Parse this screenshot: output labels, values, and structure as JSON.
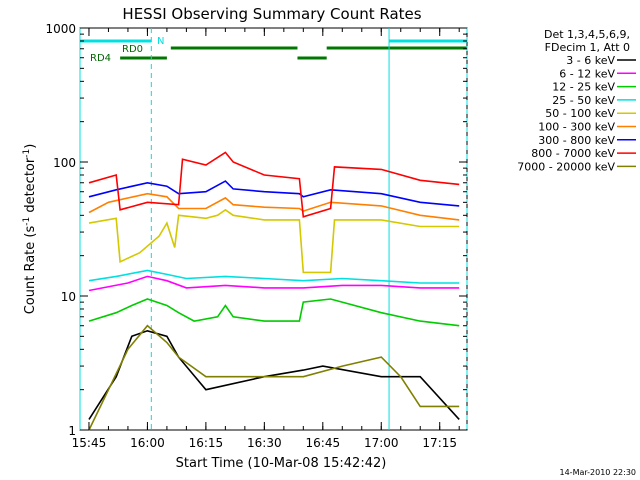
{
  "chart_data": {
    "type": "line",
    "title": "HESSI Observing Summary Count Rates",
    "xlabel": "Start Time (10-Mar-08 15:42:42)",
    "ylabel_main": "Count Rate (s",
    "ylabel_sup1": "-1",
    "ylabel_mid": " detector",
    "ylabel_sup2": "-1",
    "ylabel_end": ")",
    "y_scale": "log",
    "ylim": [
      1,
      1000
    ],
    "x_range_minutes": [
      "15:42:42",
      "17:22:00"
    ],
    "x_ticks": [
      "15:45",
      "16:00",
      "16:15",
      "16:30",
      "16:45",
      "17:00",
      "17:15"
    ],
    "y_ticks": [
      "1",
      "10",
      "100",
      "1000"
    ],
    "legend_header": [
      "Det 1,3,4,5,6,9,",
      "FDecim 1, Att 0"
    ],
    "timestamp": "14-Mar-2010 22:30",
    "bar_labels": {
      "N": "N",
      "RD0": "RD0",
      "RD4": "RD4"
    },
    "time_markers": [
      "15:42:42",
      "16:01:00",
      "17:02:00",
      "17:22:00"
    ],
    "series": [
      {
        "name": "3 - 6 keV",
        "color": "#000000",
        "values": [
          [
            "15:45",
            1.2
          ],
          [
            "15:52",
            2.5
          ],
          [
            "15:56",
            5.0
          ],
          [
            "16:00",
            5.5
          ],
          [
            "16:05",
            5.0
          ],
          [
            "16:08",
            3.5
          ],
          [
            "16:15",
            2.0
          ],
          [
            "16:30",
            2.5
          ],
          [
            "16:40",
            2.8
          ],
          [
            "16:45",
            3.0
          ],
          [
            "17:00",
            2.5
          ],
          [
            "17:10",
            2.5
          ],
          [
            "17:20",
            1.2
          ]
        ]
      },
      {
        "name": "6 - 12 keV",
        "color": "#ff00ff",
        "values": [
          [
            "15:45",
            11
          ],
          [
            "15:55",
            12.5
          ],
          [
            "16:00",
            14
          ],
          [
            "16:05",
            13
          ],
          [
            "16:10",
            11.5
          ],
          [
            "16:20",
            12
          ],
          [
            "16:30",
            11.5
          ],
          [
            "16:40",
            11.5
          ],
          [
            "16:50",
            12
          ],
          [
            "17:00",
            12
          ],
          [
            "17:10",
            11.5
          ],
          [
            "17:20",
            11.5
          ]
        ]
      },
      {
        "name": "12 - 25 keV",
        "color": "#00cc00",
        "values": [
          [
            "15:45",
            6.5
          ],
          [
            "15:52",
            7.5
          ],
          [
            "15:56",
            8.5
          ],
          [
            "16:00",
            9.5
          ],
          [
            "16:05",
            8.5
          ],
          [
            "16:08",
            7.5
          ],
          [
            "16:12",
            6.5
          ],
          [
            "16:18",
            7.0
          ],
          [
            "16:20",
            8.5
          ],
          [
            "16:22",
            7.0
          ],
          [
            "16:30",
            6.5
          ],
          [
            "16:39",
            6.5
          ],
          [
            "16:40",
            9.0
          ],
          [
            "16:47",
            9.5
          ],
          [
            "17:00",
            7.5
          ],
          [
            "17:10",
            6.5
          ],
          [
            "17:20",
            6.0
          ]
        ]
      },
      {
        "name": "25 - 50 keV",
        "color": "#00e0e0",
        "values": [
          [
            "15:45",
            13
          ],
          [
            "15:52",
            14
          ],
          [
            "16:00",
            15.5
          ],
          [
            "16:05",
            14.5
          ],
          [
            "16:10",
            13.5
          ],
          [
            "16:20",
            14
          ],
          [
            "16:30",
            13.5
          ],
          [
            "16:40",
            13
          ],
          [
            "16:50",
            13.5
          ],
          [
            "17:00",
            13
          ],
          [
            "17:10",
            12.5
          ],
          [
            "17:20",
            12.5
          ]
        ]
      },
      {
        "name": "50 - 100 keV",
        "color": "#d4c800",
        "values": [
          [
            "15:45",
            35
          ],
          [
            "15:52",
            38
          ],
          [
            "15:53",
            18
          ],
          [
            "15:58",
            21
          ],
          [
            "16:03",
            28
          ],
          [
            "16:05",
            35
          ],
          [
            "16:07",
            23
          ],
          [
            "16:08",
            40
          ],
          [
            "16:15",
            38
          ],
          [
            "16:18",
            40
          ],
          [
            "16:20",
            44
          ],
          [
            "16:22",
            40
          ],
          [
            "16:30",
            37
          ],
          [
            "16:39",
            37
          ],
          [
            "16:40",
            15
          ],
          [
            "16:47",
            15
          ],
          [
            "16:48",
            37
          ],
          [
            "17:00",
            37
          ],
          [
            "17:10",
            33
          ],
          [
            "17:20",
            33
          ]
        ]
      },
      {
        "name": "100 - 300 keV",
        "color": "#ff8000",
        "values": [
          [
            "15:45",
            42
          ],
          [
            "15:50",
            50
          ],
          [
            "16:00",
            58
          ],
          [
            "16:05",
            55
          ],
          [
            "16:08",
            45
          ],
          [
            "16:15",
            45
          ],
          [
            "16:20",
            54
          ],
          [
            "16:22",
            48
          ],
          [
            "16:30",
            46
          ],
          [
            "16:39",
            45
          ],
          [
            "16:40",
            43
          ],
          [
            "16:47",
            50
          ],
          [
            "17:00",
            47
          ],
          [
            "17:10",
            40
          ],
          [
            "17:20",
            37
          ]
        ]
      },
      {
        "name": "300 - 800 keV",
        "color": "#0000ff",
        "values": [
          [
            "15:45",
            55
          ],
          [
            "15:52",
            62
          ],
          [
            "16:00",
            70
          ],
          [
            "16:05",
            66
          ],
          [
            "16:08",
            58
          ],
          [
            "16:15",
            60
          ],
          [
            "16:20",
            72
          ],
          [
            "16:22",
            63
          ],
          [
            "16:30",
            60
          ],
          [
            "16:39",
            58
          ],
          [
            "16:40",
            55
          ],
          [
            "16:47",
            62
          ],
          [
            "17:00",
            58
          ],
          [
            "17:10",
            50
          ],
          [
            "17:20",
            47
          ]
        ]
      },
      {
        "name": "800 - 7000 keV",
        "color": "#ff0000",
        "values": [
          [
            "15:45",
            70
          ],
          [
            "15:52",
            80
          ],
          [
            "15:53",
            44
          ],
          [
            "16:00",
            50
          ],
          [
            "16:08",
            48
          ],
          [
            "16:09",
            105
          ],
          [
            "16:15",
            95
          ],
          [
            "16:20",
            118
          ],
          [
            "16:22",
            100
          ],
          [
            "16:30",
            80
          ],
          [
            "16:39",
            75
          ],
          [
            "16:40",
            39
          ],
          [
            "16:47",
            45
          ],
          [
            "16:48",
            92
          ],
          [
            "17:00",
            88
          ],
          [
            "17:10",
            73
          ],
          [
            "17:20",
            68
          ]
        ]
      },
      {
        "name": "7000 - 20000 keV",
        "color": "#808000",
        "values": [
          [
            "15:45",
            1.0
          ],
          [
            "15:50",
            2.0
          ],
          [
            "15:55",
            4.0
          ],
          [
            "16:00",
            6.0
          ],
          [
            "16:05",
            4.5
          ],
          [
            "16:08",
            3.5
          ],
          [
            "16:15",
            2.5
          ],
          [
            "16:30",
            2.5
          ],
          [
            "16:40",
            2.5
          ],
          [
            "16:50",
            3.0
          ],
          [
            "17:00",
            3.5
          ],
          [
            "17:05",
            2.5
          ],
          [
            "17:10",
            1.5
          ],
          [
            "17:20",
            1.5
          ]
        ]
      }
    ]
  }
}
